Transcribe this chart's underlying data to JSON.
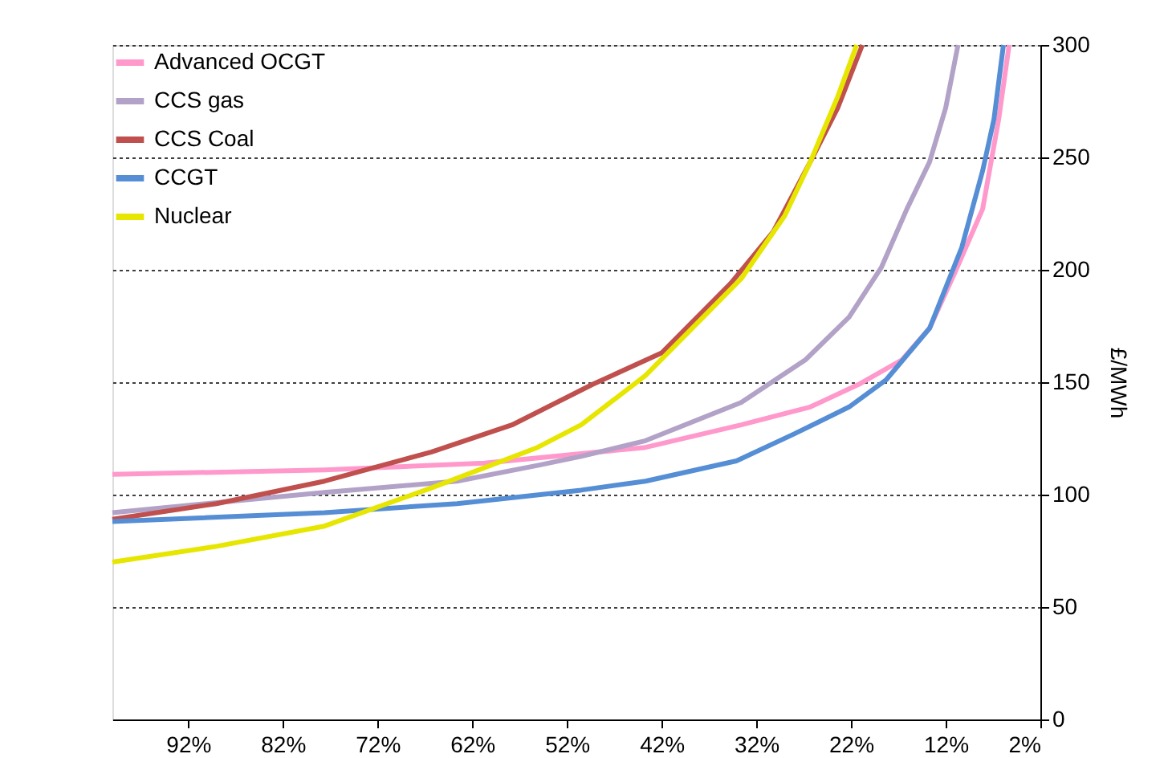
{
  "chart_data": {
    "type": "line",
    "ylabel": "£/MWh",
    "xlim": [
      100,
      2
    ],
    "ylim": [
      0,
      300
    ],
    "xticks": [
      {
        "value": 92,
        "label": "92%"
      },
      {
        "value": 82,
        "label": "82%"
      },
      {
        "value": 72,
        "label": "72%"
      },
      {
        "value": 62,
        "label": "62%"
      },
      {
        "value": 52,
        "label": "52%"
      },
      {
        "value": 42,
        "label": "42%"
      },
      {
        "value": 32,
        "label": "32%"
      },
      {
        "value": 22,
        "label": "22%"
      },
      {
        "value": 12,
        "label": "12%"
      },
      {
        "value": 2,
        "label": "2%"
      }
    ],
    "yticks": [
      0,
      50,
      100,
      150,
      200,
      250,
      300
    ],
    "grid": "y",
    "legend": "top left",
    "marker": "none",
    "line_style": "solid",
    "series": [
      {
        "name": "Advanced OCGT",
        "color": "#ff99cc",
        "x": [
          100,
          77.6,
          60.7,
          43.7,
          33.6,
          26.3,
          21.2,
          16.6,
          13.7,
          11.0,
          8.1,
          6.4,
          5.3
        ],
        "values": [
          109,
          111,
          114,
          121,
          131,
          139,
          149,
          160,
          174,
          199,
          227,
          267,
          300
        ]
      },
      {
        "name": "CCS gas",
        "color": "#b3a2c7",
        "x": [
          100,
          77.6,
          63.6,
          55.1,
          50.5,
          43.7,
          33.6,
          26.8,
          22.2,
          18.8,
          16.1,
          13.7,
          12.0,
          10.7
        ],
        "values": [
          92,
          101,
          106,
          113,
          117,
          124,
          141,
          160,
          179,
          201,
          227,
          248,
          272,
          300
        ]
      },
      {
        "name": "CCS Coal",
        "color": "#c0504d",
        "x": [
          100,
          89.0,
          77.6,
          66.3,
          57.8,
          49.3,
          42.0,
          34.7,
          30.2,
          26.3,
          23.4,
          20.8
        ],
        "values": [
          89,
          96,
          106,
          119,
          131,
          149,
          163,
          194,
          217,
          248,
          272,
          300
        ]
      },
      {
        "name": "CCGT",
        "color": "#558ed5",
        "x": [
          100,
          77.6,
          63.6,
          50.5,
          43.7,
          34.1,
          28.0,
          22.2,
          18.3,
          13.7,
          10.3,
          8.1,
          6.9,
          5.9
        ],
        "values": [
          88,
          92,
          96,
          102,
          106,
          115,
          127,
          139,
          151,
          174,
          210,
          244,
          267,
          300
        ]
      },
      {
        "name": "Nuclear",
        "color": "#e6e600",
        "x": [
          100,
          89.0,
          77.6,
          66.3,
          55.1,
          50.5,
          43.7,
          33.6,
          29.0,
          26.3,
          23.4,
          21.4
        ],
        "values": [
          70,
          77,
          86,
          103,
          121,
          131,
          153,
          196,
          224,
          248,
          277,
          300
        ]
      }
    ]
  }
}
